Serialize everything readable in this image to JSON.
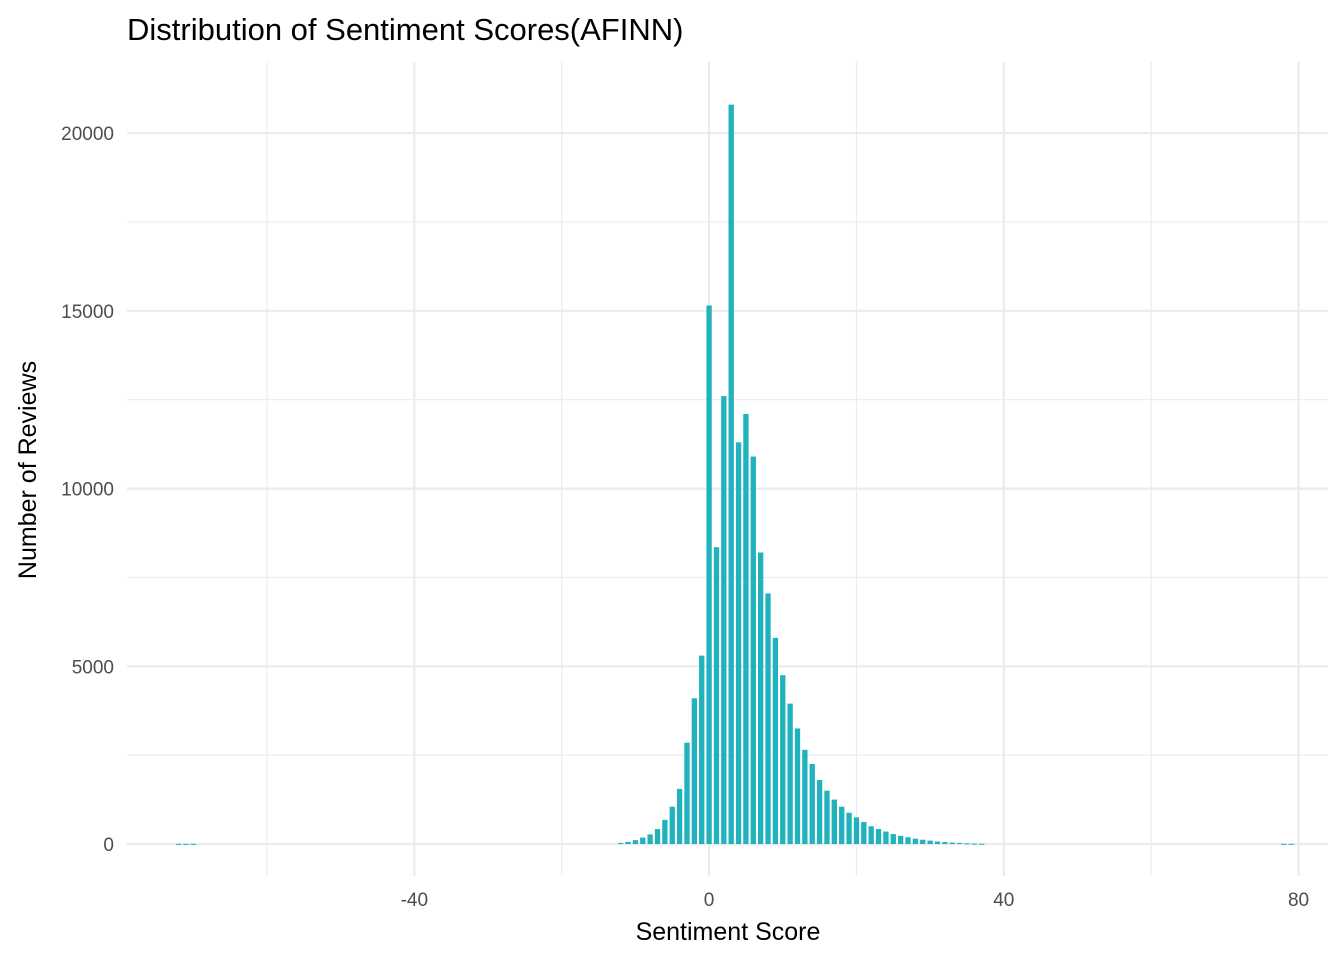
{
  "chart_data": {
    "type": "bar",
    "title": "Distribution of Sentiment Scores(AFINN)",
    "xlabel": "Sentiment Score",
    "ylabel": "Number of Reviews",
    "xlim": [
      -79,
      84
    ],
    "ylim": [
      -900,
      22000
    ],
    "x_ticks": [
      -40,
      0,
      40,
      80
    ],
    "x_tick_labels": [
      "-40",
      "0",
      "40",
      "80"
    ],
    "x_minor_ticks": [
      -60,
      -20,
      20,
      60
    ],
    "y_ticks": [
      0,
      5000,
      10000,
      15000,
      20000
    ],
    "y_tick_labels": [
      "0",
      "5000",
      "10000",
      "15000",
      "20000"
    ],
    "y_minor_ticks": [
      2500,
      7500,
      12500,
      17500
    ],
    "grid": true,
    "legend": "none",
    "bar_color": "#20b2bd",
    "series": [
      {
        "x": [
          -72,
          -71,
          -70,
          -12,
          -11,
          -10,
          -9,
          -8,
          -7,
          -6,
          -5,
          -4,
          -3,
          -2,
          -1,
          0,
          1,
          2,
          3,
          4,
          5,
          6,
          7,
          8,
          9,
          10,
          11,
          12,
          13,
          14,
          15,
          16,
          17,
          18,
          19,
          20,
          21,
          22,
          23,
          24,
          25,
          26,
          27,
          28,
          29,
          30,
          31,
          32,
          33,
          34,
          35,
          36,
          37,
          78,
          79
        ],
        "values": [
          4,
          4,
          4,
          30,
          60,
          110,
          180,
          270,
          420,
          680,
          1050,
          1550,
          2850,
          4100,
          5300,
          15150,
          8350,
          12600,
          20800,
          11300,
          12100,
          10900,
          8200,
          7050,
          5800,
          4750,
          3950,
          3250,
          2650,
          2250,
          1800,
          1500,
          1250,
          1050,
          880,
          750,
          620,
          500,
          420,
          350,
          280,
          230,
          190,
          150,
          120,
          95,
          70,
          55,
          40,
          30,
          20,
          12,
          8,
          4,
          4
        ]
      }
    ]
  }
}
